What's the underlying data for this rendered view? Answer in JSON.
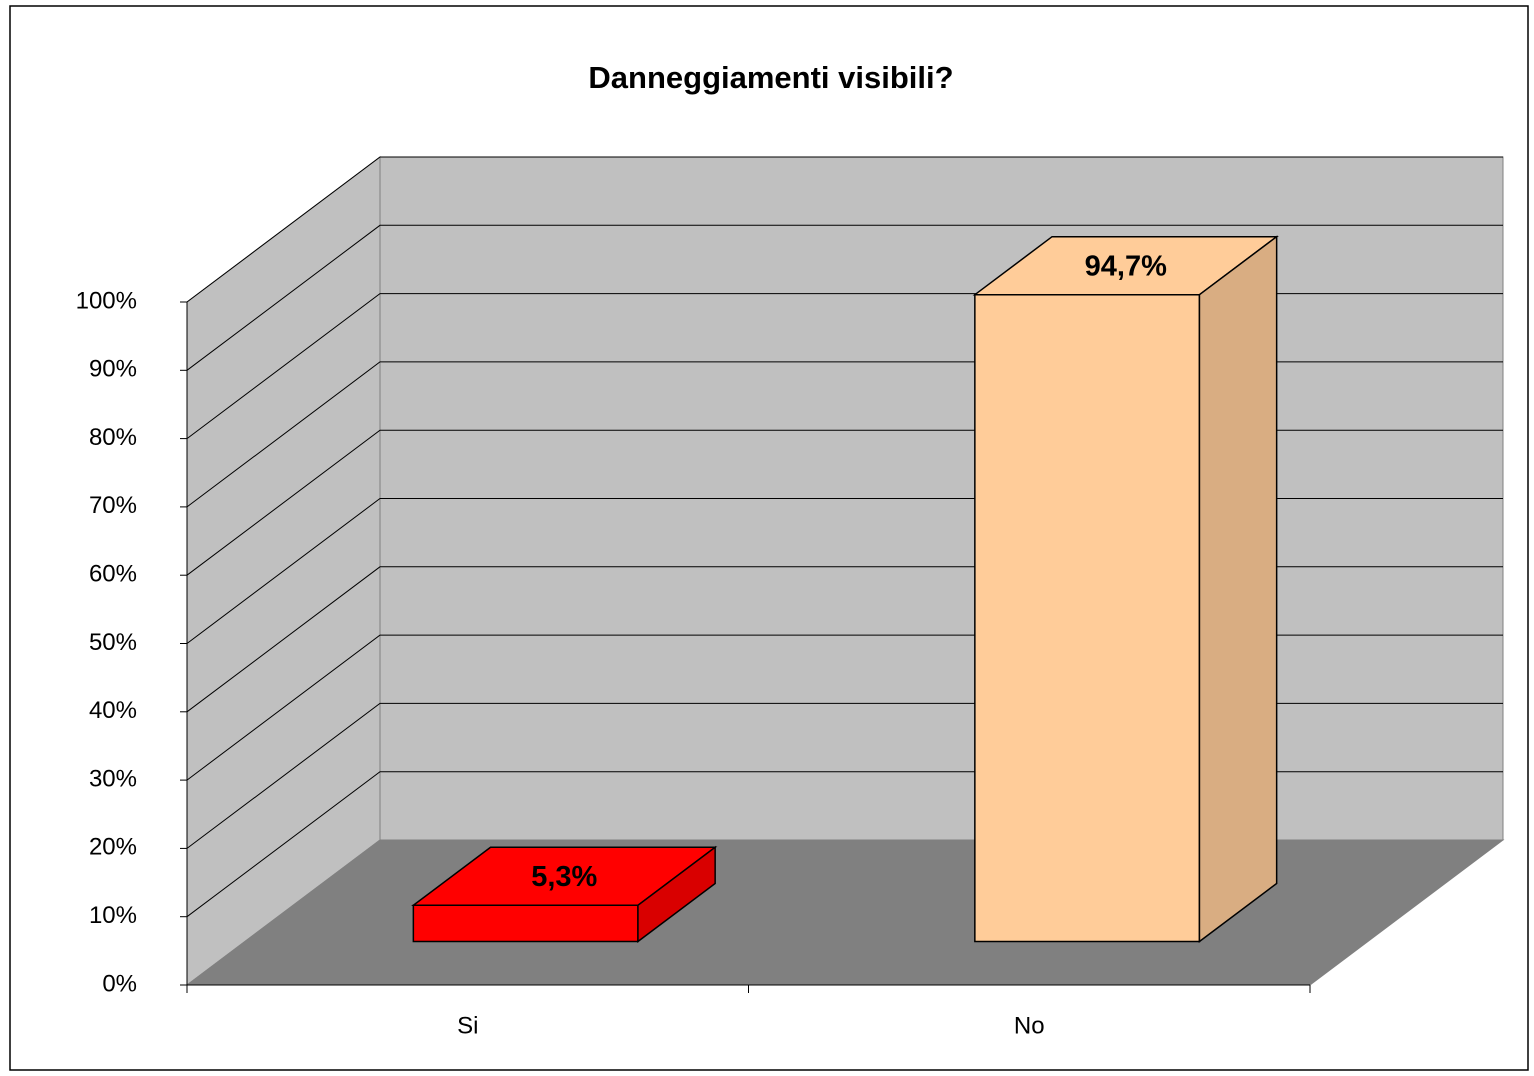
{
  "chart_data": {
    "type": "bar3d",
    "title": "Danneggiamenti visibili?",
    "categories": [
      "Si",
      "No"
    ],
    "values": [
      5.3,
      94.7
    ],
    "value_labels": [
      "5,3%",
      "94,7%"
    ],
    "colors": [
      "#ff0000",
      "#ffcc99"
    ],
    "ylim": [
      0,
      100
    ],
    "yticks": [
      {
        "value": 0,
        "label": "0%"
      },
      {
        "value": 10,
        "label": "10%"
      },
      {
        "value": 20,
        "label": "20%"
      },
      {
        "value": 30,
        "label": "30%"
      },
      {
        "value": 40,
        "label": "40%"
      },
      {
        "value": 50,
        "label": "50%"
      },
      {
        "value": 60,
        "label": "60%"
      },
      {
        "value": 70,
        "label": "70%"
      },
      {
        "value": 80,
        "label": "80%"
      },
      {
        "value": 90,
        "label": "90%"
      },
      {
        "value": 100,
        "label": "100%"
      }
    ],
    "grid": true
  }
}
